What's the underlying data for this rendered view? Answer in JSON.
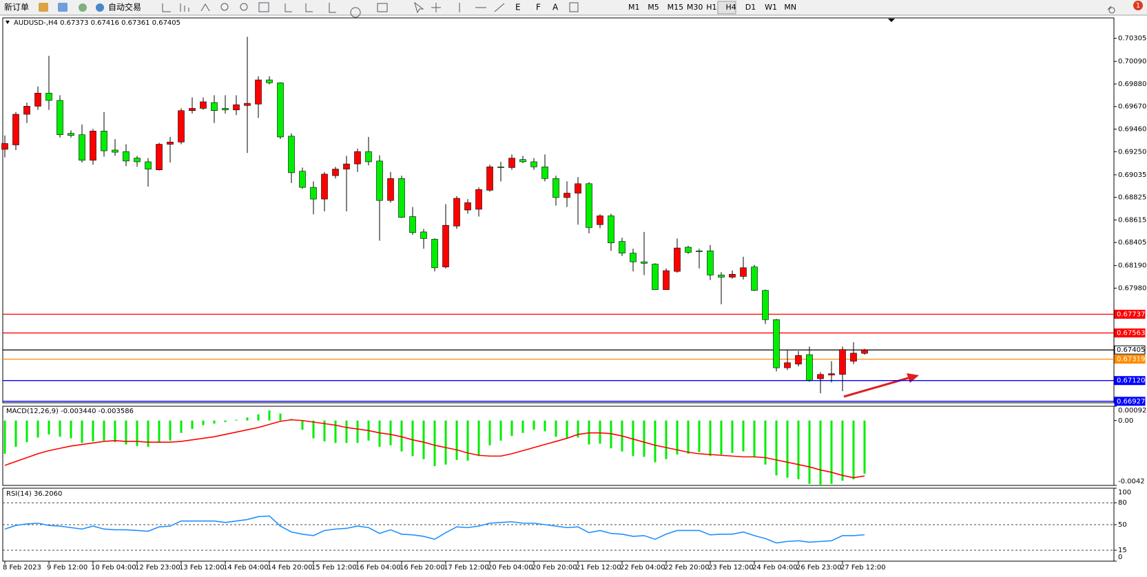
{
  "toolbar": {
    "buttons": [
      "新订单",
      "自动交易"
    ],
    "timeframes": [
      "M1",
      "M5",
      "M15",
      "M30",
      "H1",
      "H4",
      "D1",
      "W1",
      "MN"
    ],
    "alerts": 1
  },
  "chart_data": [
    {
      "type": "candlestick",
      "title": "AUDUSD-,H4  0.67373 0.67416 0.67361 0.67405",
      "up_color": "#ff0000",
      "down_color": "#00ee00",
      "categories": [
        "8 Feb 2023",
        null,
        null,
        null,
        "9 Feb 12:00",
        null,
        null,
        null,
        "10 Feb 04:00",
        null,
        null,
        null,
        "12 Feb 23:00",
        null,
        null,
        null,
        "13 Feb 12:00",
        null,
        null,
        null,
        "14 Feb 04:00",
        null,
        null,
        null,
        "14 Feb 20:00",
        null,
        null,
        null,
        "15 Feb 12:00",
        null,
        null,
        null,
        "16 Feb 04:00",
        null,
        null,
        null,
        "16 Feb 20:00",
        null,
        null,
        null,
        "17 Feb 12:00",
        null,
        null,
        null,
        "20 Feb 04:00",
        null,
        null,
        null,
        "20 Feb 20:00",
        null,
        null,
        null,
        "21 Feb 12:00",
        null,
        null,
        null,
        "22 Feb 04:00",
        null,
        null,
        null,
        "22 Feb 20:00",
        null,
        null,
        null,
        "23 Feb 12:00",
        null,
        null,
        null,
        "24 Feb 04:00",
        null,
        null,
        null,
        "26 Feb 23:00",
        null,
        null,
        null,
        "27 Feb 12:00",
        null,
        null
      ],
      "open": [
        0.69272,
        0.69313,
        0.69598,
        0.69673,
        0.69795,
        0.69727,
        0.69421,
        0.69408,
        0.6917,
        0.69442,
        0.69265,
        0.69251,
        0.6919,
        0.69156,
        0.69081,
        0.69319,
        0.6934,
        0.69632,
        0.69653,
        0.69707,
        0.69653,
        0.69639,
        0.6968,
        0.69693,
        0.69918,
        0.69891,
        0.69394,
        0.69068,
        0.68918,
        0.68809,
        0.69027,
        0.69088,
        0.69136,
        0.69251,
        0.69163,
        0.68796,
        0.69,
        0.68646,
        0.68503,
        0.68435,
        0.68177,
        0.68558,
        0.68707,
        0.68714,
        0.68891,
        0.69109,
        0.69102,
        0.69177,
        0.69156,
        0.69109,
        0.69,
        0.68823,
        0.68864,
        0.68952,
        0.68571,
        0.68653,
        0.68415,
        0.68306,
        0.68225,
        0.68204,
        0.67966,
        0.68136,
        0.68361,
        0.68327,
        0.68327,
        0.68102,
        0.68082,
        0.68089,
        0.68177,
        0.67959,
        0.67687,
        0.67239,
        0.67273,
        0.67361,
        0.67137,
        0.67171,
        0.67177,
        0.673,
        0.67373
      ],
      "high": [
        0.69401,
        0.69619,
        0.69707,
        0.69857,
        0.70142,
        0.69775,
        0.69449,
        0.69503,
        0.69462,
        0.69619,
        0.69367,
        0.69319,
        0.69211,
        0.6919,
        0.69333,
        0.69387,
        0.69653,
        0.69755,
        0.69755,
        0.69775,
        0.69775,
        0.69775,
        0.70319,
        0.69952,
        0.69952,
        0.69897,
        0.69421,
        0.69102,
        0.68973,
        0.69061,
        0.69109,
        0.69211,
        0.69279,
        0.69387,
        0.69217,
        0.69061,
        0.69027,
        0.68735,
        0.68531,
        0.68442,
        0.68762,
        0.68837,
        0.68809,
        0.68918,
        0.69129,
        0.69156,
        0.69224,
        0.69211,
        0.6919,
        0.69224,
        0.69027,
        0.68973,
        0.69013,
        0.68966,
        0.68667,
        0.68673,
        0.68449,
        0.68347,
        0.68503,
        0.68211,
        0.68163,
        0.68442,
        0.68374,
        0.68347,
        0.68381,
        0.68129,
        0.68143,
        0.68272,
        0.68197,
        0.67966,
        0.67694,
        0.67402,
        0.67395,
        0.67436,
        0.67198,
        0.673,
        0.67436,
        0.67477,
        0.67416
      ],
      "low": [
        0.69197,
        0.69265,
        0.69517,
        0.69639,
        0.69639,
        0.69381,
        0.69381,
        0.69149,
        0.69129,
        0.69204,
        0.69211,
        0.69115,
        0.69109,
        0.68925,
        0.69075,
        0.69149,
        0.69319,
        0.69605,
        0.69639,
        0.69517,
        0.69605,
        0.69591,
        0.69238,
        0.69564,
        0.69877,
        0.69367,
        0.68959,
        0.68905,
        0.68667,
        0.68694,
        0.69,
        0.68694,
        0.69061,
        0.69122,
        0.68422,
        0.68775,
        0.68633,
        0.68476,
        0.68347,
        0.68136,
        0.68163,
        0.68531,
        0.68673,
        0.68646,
        0.68877,
        0.68973,
        0.69081,
        0.69143,
        0.69081,
        0.68973,
        0.68748,
        0.68735,
        0.68571,
        0.6849,
        0.68537,
        0.68327,
        0.68279,
        0.68136,
        0.68102,
        0.67966,
        0.67966,
        0.68123,
        0.68299,
        0.68163,
        0.68055,
        0.6783,
        0.68068,
        0.68061,
        0.67953,
        0.67647,
        0.67205,
        0.67218,
        0.67252,
        0.67109,
        0.67001,
        0.67103,
        0.67021,
        0.67273,
        0.67361
      ],
      "close": [
        0.69326,
        0.69598,
        0.69673,
        0.69795,
        0.69727,
        0.69408,
        0.69401,
        0.6917,
        0.69442,
        0.69258,
        0.69245,
        0.69163,
        0.69156,
        0.69088,
        0.69319,
        0.6934,
        0.69632,
        0.69653,
        0.69714,
        0.69632,
        0.69639,
        0.69687,
        0.697,
        0.69918,
        0.69891,
        0.69387,
        0.69054,
        0.68918,
        0.68809,
        0.69041,
        0.69088,
        0.69136,
        0.69251,
        0.69156,
        0.68796,
        0.69,
        0.68639,
        0.68497,
        0.68442,
        0.6817,
        0.68565,
        0.68816,
        0.68775,
        0.68898,
        0.69109,
        0.69102,
        0.6919,
        0.69156,
        0.69109,
        0.69,
        0.68823,
        0.68864,
        0.68952,
        0.68544,
        0.68653,
        0.68401,
        0.68306,
        0.68225,
        0.68211,
        0.67966,
        0.68143,
        0.68354,
        0.68313,
        0.6832,
        0.68102,
        0.68082,
        0.68109,
        0.6817,
        0.67959,
        0.67687,
        0.67239,
        0.67286,
        0.67354,
        0.67123,
        0.67177,
        0.67184,
        0.67409,
        0.67375,
        0.67405
      ],
      "ylim": [
        0.66913,
        0.70495
      ],
      "yticks": [
        0.70305,
        {
          "value": 0.7009,
          "label": "0.70090"
        },
        {
          "value": 0.6988,
          "label": "0.69880"
        },
        {
          "value": 0.6967,
          "label": "0.69670"
        },
        {
          "value": 0.6946,
          "label": "0.69460"
        },
        {
          "value": 0.6925,
          "label": "0.69250"
        },
        0.69035,
        0.68825,
        0.68615,
        0.68405,
        {
          "value": 0.6819,
          "label": "0.68190"
        },
        {
          "value": 0.6798,
          "label": "0.67980"
        }
      ],
      "hlines": [
        {
          "value": 0.67737,
          "label": "0.67737",
          "color": "#ff0000",
          "label_color": "#ffffff"
        },
        {
          "value": 0.67563,
          "label": "0.67563",
          "color": "#ff0000",
          "label_color": "#ffffff"
        },
        {
          "value": 0.67405,
          "label": "0.67405",
          "color": "#000000",
          "label_color": "#000000"
        },
        {
          "value": 0.67319,
          "label": "0.67319",
          "color": "#ff8c00",
          "label_color": "#ffffff"
        },
        {
          "value": 0.6712,
          "label": "0.67120",
          "color": "#0000ff",
          "label_color": "#ffffff"
        },
        {
          "value": 0.66927,
          "label": "0.66927",
          "color": "#0000ff",
          "label_color": "#ffffff"
        }
      ]
    },
    {
      "type": "bar",
      "title": "MACD(12,26,9) -0.003440 -0.003586",
      "ylim": [
        -0.0042,
        0.000925
      ],
      "yticks": [
        0.000925,
        {
          "value": 0,
          "label": "0.00"
        },
        -0.0042
      ],
      "series": [
        {
          "style": "bar",
          "color": "#00ee00",
          "values": [
            -0.00215,
            -0.0017,
            -0.0014,
            -0.0011,
            -0.0009,
            -0.00105,
            -0.00115,
            -0.00145,
            -0.00135,
            -0.0013,
            -0.0014,
            -0.00155,
            -0.00165,
            -0.0017,
            -0.00145,
            -0.0013,
            -0.0008,
            -0.00055,
            -0.0003,
            -0.0002,
            -0.0001,
            5e-05,
            0.0002,
            0.0004,
            0.00065,
            0.00045,
            0.0001,
            -0.0006,
            -0.00115,
            -0.00135,
            -0.00145,
            -0.00145,
            -0.00145,
            -0.0013,
            -0.0017,
            -0.0016,
            -0.002,
            -0.0023,
            -0.0025,
            -0.00295,
            -0.00285,
            -0.00255,
            -0.0026,
            -0.0023,
            -0.0016,
            -0.0013,
            -0.001,
            -0.0008,
            -0.0006,
            -0.0007,
            -0.00105,
            -0.00115,
            -0.0011,
            -0.00155,
            -0.0015,
            -0.0018,
            -0.002,
            -0.0023,
            -0.00235,
            -0.0027,
            -0.0025,
            -0.0022,
            -0.00215,
            -0.00205,
            -0.0023,
            -0.0022,
            -0.0021,
            -0.002,
            -0.00235,
            -0.00285,
            -0.00355,
            -0.0037,
            -0.0038,
            -0.0041,
            -0.0042,
            -0.0041,
            -0.0039,
            -0.0038,
            -0.00344
          ]
        },
        {
          "style": "line",
          "color": "#ff0000",
          "values": [
            -0.0029,
            -0.00265,
            -0.0024,
            -0.00215,
            -0.00195,
            -0.0018,
            -0.00165,
            -0.00155,
            -0.00145,
            -0.00135,
            -0.0013,
            -0.00135,
            -0.00135,
            -0.0014,
            -0.0014,
            -0.0014,
            -0.00135,
            -0.00125,
            -0.00115,
            -0.00105,
            -0.0009,
            -0.00075,
            -0.0006,
            -0.00045,
            -0.00025,
            -5e-05,
            5e-05,
            0,
            -0.0001,
            -0.0002,
            -0.0003,
            -0.00045,
            -0.00055,
            -0.00065,
            -0.0008,
            -0.0009,
            -0.00105,
            -0.00125,
            -0.0014,
            -0.0016,
            -0.00175,
            -0.0019,
            -0.0021,
            -0.00225,
            -0.0023,
            -0.0023,
            -0.00215,
            -0.00195,
            -0.00175,
            -0.00155,
            -0.00135,
            -0.00115,
            -0.0009,
            -0.0008,
            -0.0008,
            -0.00085,
            -0.001,
            -0.0012,
            -0.0014,
            -0.0016,
            -0.00175,
            -0.0019,
            -0.00205,
            -0.00215,
            -0.0022,
            -0.00225,
            -0.0023,
            -0.00235,
            -0.00235,
            -0.0024,
            -0.00255,
            -0.0027,
            -0.00285,
            -0.003,
            -0.0032,
            -0.00335,
            -0.00355,
            -0.0037,
            -0.003586
          ]
        }
      ]
    },
    {
      "type": "line",
      "title": "RSI(14) 36.2060",
      "color": "#1e90ff",
      "ylim": [
        0,
        100
      ],
      "yticks": [
        100,
        80,
        50,
        15,
        0
      ],
      "levels": [
        80,
        50,
        15
      ],
      "values": [
        44,
        49,
        51,
        52,
        49,
        48,
        46,
        44,
        48,
        44,
        43,
        43,
        42,
        41,
        47,
        48,
        55,
        55,
        55,
        55,
        53,
        55,
        57,
        61,
        62,
        48,
        40,
        37,
        35,
        42,
        44,
        45,
        48,
        46,
        38,
        43,
        37,
        36,
        34,
        30,
        39,
        47,
        46,
        48,
        52,
        53,
        54,
        52,
        52,
        50,
        48,
        46,
        47,
        39,
        42,
        38,
        37,
        34,
        35,
        30,
        37,
        42,
        42,
        42,
        36,
        37,
        37,
        40,
        35,
        31,
        25,
        27,
        28,
        26,
        27,
        28,
        35,
        35,
        36.206
      ]
    }
  ]
}
